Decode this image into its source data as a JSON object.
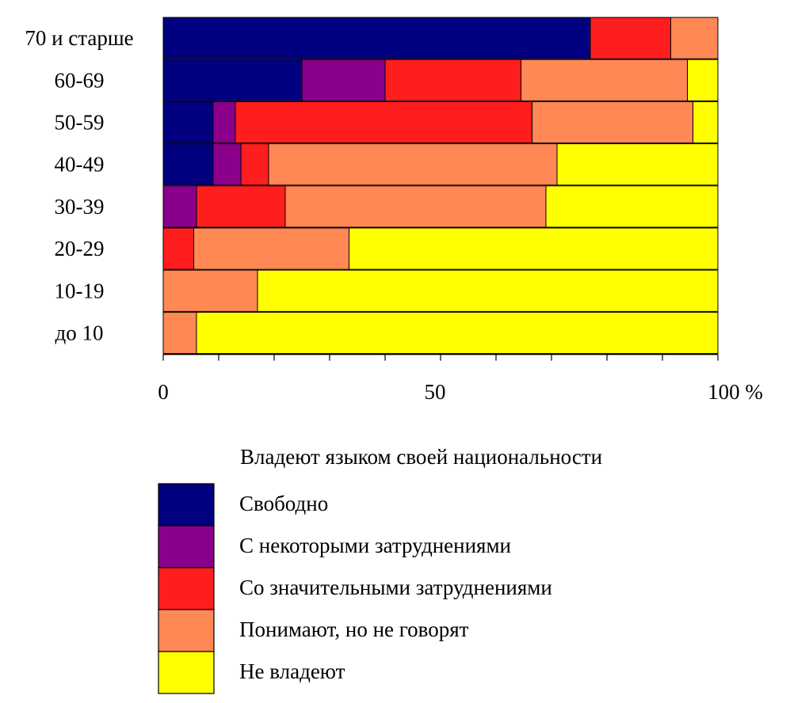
{
  "chart_data": {
    "type": "bar",
    "orientation": "horizontal",
    "stacked": true,
    "normalized_percent": true,
    "categories": [
      "70 и старше",
      "60-69",
      "50-59",
      "40-49",
      "30-39",
      "20-29",
      "10-19",
      "до 10"
    ],
    "series": [
      {
        "name": "Свободно",
        "color": "#000080",
        "values": [
          77,
          25,
          9,
          9,
          0,
          0,
          0,
          0
        ]
      },
      {
        "name": "С некоторыми затруднениями",
        "color": "#8B008B",
        "values": [
          0,
          15,
          4,
          5,
          6,
          0,
          0,
          0
        ]
      },
      {
        "name": "Со значительными затруднениями",
        "color": "#FF1E1E",
        "values": [
          14.5,
          24.5,
          53.5,
          5,
          16,
          5.5,
          0,
          0
        ]
      },
      {
        "name": "Понимают, но не говорят",
        "color": "#FF8855",
        "values": [
          8.5,
          30,
          29,
          52,
          47,
          28,
          17,
          6
        ]
      },
      {
        "name": "Не владеют",
        "color": "#FFFF00",
        "values": [
          0,
          5.5,
          4.5,
          29,
          31,
          66.5,
          83,
          94
        ]
      }
    ],
    "xlim": [
      0,
      100
    ],
    "x_ticks": [
      "0",
      "50",
      "100 %"
    ],
    "legend_title": "Владеют языком своей национальности",
    "legend_position": "bottom",
    "grid": false
  }
}
